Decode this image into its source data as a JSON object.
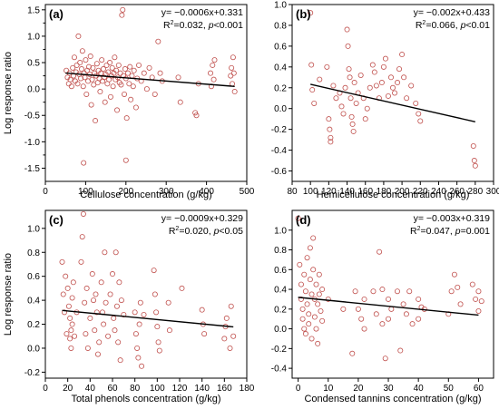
{
  "chart_data": [
    {
      "type": "scatter",
      "panel": "(a)",
      "xlabel": "Cellulose concentration (g/kg)",
      "ylabel": "Log response ratio",
      "xlim": [
        0,
        500
      ],
      "ylim": [
        -1.75,
        1.6
      ],
      "xticks": [
        0,
        100,
        200,
        300,
        400,
        500
      ],
      "yticks": [
        -1.5,
        -1.25,
        -1.0,
        -0.75,
        -0.5,
        -0.25,
        0.0,
        0.25,
        0.5,
        0.75,
        1.0,
        1.25,
        1.5
      ],
      "ytick_labels": [
        "-1.5",
        "",
        "-1.0",
        "",
        "-0.5",
        "",
        "0.0",
        "",
        "0.5",
        "",
        "1.0",
        "",
        "1.5"
      ],
      "equation": "y= −0.0006x+0.331",
      "r2_prefix": "R",
      "r2_sup": "2",
      "r2_text": "=0.032, ",
      "p_label": "p",
      "p_text": "<0.001",
      "fit": {
        "slope": -0.0006,
        "intercept": 0.331,
        "x0": 50,
        "x1": 470
      },
      "points": [
        [
          52,
          0.35
        ],
        [
          55,
          0.22
        ],
        [
          58,
          0.1
        ],
        [
          60,
          0.3
        ],
        [
          62,
          0.18
        ],
        [
          65,
          0.05
        ],
        [
          68,
          0.4
        ],
        [
          70,
          0.25
        ],
        [
          72,
          0.6
        ],
        [
          74,
          0.15
        ],
        [
          76,
          0.32
        ],
        [
          78,
          0.45
        ],
        [
          80,
          0.1
        ],
        [
          82,
          1.0
        ],
        [
          84,
          0.28
        ],
        [
          86,
          0.5
        ],
        [
          88,
          0.2
        ],
        [
          90,
          0.38
        ],
        [
          92,
          0.72
        ],
        [
          94,
          0.05
        ],
        [
          96,
          0.3
        ],
        [
          98,
          0.22
        ],
        [
          100,
          0.55
        ],
        [
          102,
          -0.1
        ],
        [
          104,
          0.35
        ],
        [
          106,
          0.15
        ],
        [
          108,
          0.42
        ],
        [
          110,
          0.28
        ],
        [
          112,
          0.62
        ],
        [
          114,
          -0.3
        ],
        [
          116,
          0.18
        ],
        [
          118,
          0.4
        ],
        [
          120,
          0.08
        ],
        [
          122,
          0.3
        ],
        [
          124,
          -0.6
        ],
        [
          126,
          0.25
        ],
        [
          128,
          0.48
        ],
        [
          130,
          0.12
        ],
        [
          132,
          0.35
        ],
        [
          134,
          0.2
        ],
        [
          136,
          -0.05
        ],
        [
          138,
          0.3
        ],
        [
          140,
          0.55
        ],
        [
          142,
          0.15
        ],
        [
          144,
          0.38
        ],
        [
          146,
          0.22
        ],
        [
          148,
          -0.25
        ],
        [
          150,
          0.28
        ],
        [
          152,
          0.45
        ],
        [
          154,
          0.1
        ],
        [
          156,
          0.32
        ],
        [
          158,
          0.18
        ],
        [
          160,
          0.5
        ],
        [
          162,
          -0.15
        ],
        [
          164,
          0.25
        ],
        [
          166,
          0.4
        ],
        [
          168,
          0.05
        ],
        [
          170,
          0.3
        ],
        [
          172,
          0.6
        ],
        [
          174,
          0.18
        ],
        [
          176,
          0.35
        ],
        [
          178,
          -0.4
        ],
        [
          180,
          0.22
        ],
        [
          182,
          0.45
        ],
        [
          184,
          0.12
        ],
        [
          186,
          0.3
        ],
        [
          188,
          0.08
        ],
        [
          190,
          1.4
        ],
        [
          192,
          1.5
        ],
        [
          194,
          0.25
        ],
        [
          196,
          -0.1
        ],
        [
          198,
          0.38
        ],
        [
          200,
          0.2
        ],
        [
          202,
          -0.55
        ],
        [
          205,
          0.3
        ],
        [
          208,
          0.1
        ],
        [
          210,
          0.42
        ],
        [
          212,
          -0.2
        ],
        [
          215,
          0.25
        ],
        [
          218,
          0.05
        ],
        [
          220,
          0.35
        ],
        [
          225,
          -0.35
        ],
        [
          228,
          0.2
        ],
        [
          232,
          0.45
        ],
        [
          238,
          0.15
        ],
        [
          245,
          0.3
        ],
        [
          252,
          0.0
        ],
        [
          258,
          0.4
        ],
        [
          265,
          0.22
        ],
        [
          272,
          -0.1
        ],
        [
          280,
          0.9
        ],
        [
          285,
          0.3
        ],
        [
          290,
          0.15
        ],
        [
          330,
          0.22
        ],
        [
          335,
          -0.25
        ],
        [
          372,
          -0.45
        ],
        [
          375,
          -0.5
        ],
        [
          380,
          0.1
        ],
        [
          410,
          0.3
        ],
        [
          412,
          0.05
        ],
        [
          415,
          0.45
        ],
        [
          418,
          0.18
        ],
        [
          420,
          0.55
        ],
        [
          460,
          0.25
        ],
        [
          462,
          0.4
        ],
        [
          464,
          0.1
        ],
        [
          466,
          0.6
        ],
        [
          468,
          0.3
        ],
        [
          470,
          -0.05
        ],
        [
          95,
          -1.4
        ],
        [
          200,
          -1.35
        ]
      ]
    },
    {
      "type": "scatter",
      "panel": "(b)",
      "xlabel": "Hemicellulose concentration (g/kg)",
      "ylabel": "",
      "xlim": [
        80,
        300
      ],
      "ylim": [
        -0.7,
        1.0
      ],
      "xticks": [
        80,
        100,
        120,
        140,
        160,
        180,
        200,
        220,
        240,
        260,
        280,
        300
      ],
      "yticks": [
        -0.6,
        -0.4,
        -0.2,
        0.0,
        0.2,
        0.4,
        0.6,
        0.8,
        1.0
      ],
      "ytick_labels": [
        "-0.6",
        "-0.4",
        "-0.2",
        "0.0",
        "0.2",
        "0.4",
        "0.6",
        "0.8",
        "1.0"
      ],
      "equation": "y= −0.002x+0.433",
      "r2_prefix": "R",
      "r2_sup": "2",
      "r2_text": "=0.066, ",
      "p_label": "p",
      "p_text": "<0.01",
      "fit": {
        "slope": -0.002,
        "intercept": 0.433,
        "x0": 100,
        "x1": 280
      },
      "points": [
        [
          100,
          0.92
        ],
        [
          101,
          0.42
        ],
        [
          102,
          0.18
        ],
        [
          104,
          0.05
        ],
        [
          110,
          0.28
        ],
        [
          118,
          0.4
        ],
        [
          120,
          -0.1
        ],
        [
          121,
          -0.2
        ],
        [
          122,
          -0.28
        ],
        [
          122,
          -0.32
        ],
        [
          125,
          0.22
        ],
        [
          128,
          0.1
        ],
        [
          132,
          0.15
        ],
        [
          134,
          0.02
        ],
        [
          136,
          -0.05
        ],
        [
          138,
          0.2
        ],
        [
          140,
          0.76
        ],
        [
          141,
          0.6
        ],
        [
          142,
          0.38
        ],
        [
          143,
          0.3
        ],
        [
          144,
          0.1
        ],
        [
          145,
          -0.08
        ],
        [
          146,
          -0.15
        ],
        [
          147,
          -0.22
        ],
        [
          148,
          0.25
        ],
        [
          150,
          0.05
        ],
        [
          152,
          0.15
        ],
        [
          155,
          0.32
        ],
        [
          158,
          0.1
        ],
        [
          160,
          -0.1
        ],
        [
          162,
          0.0
        ],
        [
          165,
          0.2
        ],
        [
          168,
          0.42
        ],
        [
          170,
          0.35
        ],
        [
          172,
          0.22
        ],
        [
          175,
          0.1
        ],
        [
          178,
          0.25
        ],
        [
          180,
          0.4
        ],
        [
          182,
          0.48
        ],
        [
          185,
          0.12
        ],
        [
          188,
          0.3
        ],
        [
          190,
          0.2
        ],
        [
          192,
          0.15
        ],
        [
          195,
          0.25
        ],
        [
          197,
          0.38
        ],
        [
          200,
          0.52
        ],
        [
          202,
          0.3
        ],
        [
          205,
          0.1
        ],
        [
          210,
          0.22
        ],
        [
          215,
          0.05
        ],
        [
          218,
          -0.05
        ],
        [
          220,
          -0.12
        ],
        [
          278,
          -0.36
        ],
        [
          279,
          -0.5
        ],
        [
          280,
          -0.55
        ]
      ]
    },
    {
      "type": "scatter",
      "panel": "(c)",
      "xlabel": "Total phenols concentration (g/kg)",
      "ylabel": "Log response ratio",
      "xlim": [
        0,
        180
      ],
      "ylim": [
        -0.25,
        1.15
      ],
      "xticks": [
        0,
        20,
        40,
        60,
        80,
        100,
        120,
        140,
        160,
        180
      ],
      "yticks": [
        -0.2,
        0.0,
        0.2,
        0.4,
        0.6,
        0.8,
        1.0
      ],
      "ytick_labels": [
        "-0.2",
        "0.0",
        "0.2",
        "0.4",
        "0.6",
        "0.8",
        "1.0"
      ],
      "equation": "y= −0.0009x+0.329",
      "r2_prefix": "R",
      "r2_sup": "2",
      "r2_text": "=0.020, ",
      "p_label": "p",
      "p_text": "<0.05",
      "fit": {
        "slope": -0.0009,
        "intercept": 0.329,
        "x0": 15,
        "x1": 168
      },
      "points": [
        [
          15,
          0.72
        ],
        [
          16,
          0.45
        ],
        [
          17,
          0.3
        ],
        [
          18,
          0.6
        ],
        [
          19,
          0.12
        ],
        [
          20,
          0.5
        ],
        [
          21,
          0.35
        ],
        [
          22,
          0.25
        ],
        [
          22,
          0.08
        ],
        [
          23,
          0.15
        ],
        [
          23,
          0.0
        ],
        [
          24,
          0.42
        ],
        [
          24,
          0.2
        ],
        [
          25,
          0.55
        ],
        [
          26,
          0.1
        ],
        [
          28,
          0.3
        ],
        [
          32,
          0.72
        ],
        [
          33,
          0.93
        ],
        [
          34,
          1.12
        ],
        [
          35,
          0.38
        ],
        [
          36,
          0.12
        ],
        [
          37,
          0.5
        ],
        [
          38,
          0.0
        ],
        [
          40,
          0.25
        ],
        [
          42,
          0.62
        ],
        [
          43,
          0.4
        ],
        [
          44,
          0.15
        ],
        [
          45,
          0.45
        ],
        [
          46,
          0.3
        ],
        [
          47,
          -0.05
        ],
        [
          48,
          0.05
        ],
        [
          50,
          0.55
        ],
        [
          51,
          0.3
        ],
        [
          52,
          0.2
        ],
        [
          53,
          0.8
        ],
        [
          54,
          0.38
        ],
        [
          56,
          0.1
        ],
        [
          58,
          0.45
        ],
        [
          60,
          0.62
        ],
        [
          61,
          0.25
        ],
        [
          62,
          0.15
        ],
        [
          63,
          0.8
        ],
        [
          64,
          0.35
        ],
        [
          65,
          0.05
        ],
        [
          66,
          0.55
        ],
        [
          67,
          -0.1
        ],
        [
          68,
          0.4
        ],
        [
          70,
          0.28
        ],
        [
          80,
          0.3
        ],
        [
          81,
          0.12
        ],
        [
          82,
          0.0
        ],
        [
          83,
          -0.08
        ],
        [
          84,
          0.2
        ],
        [
          85,
          0.38
        ],
        [
          86,
          -0.15
        ],
        [
          88,
          0.28
        ],
        [
          97,
          0.65
        ],
        [
          98,
          0.45
        ],
        [
          99,
          0.3
        ],
        [
          100,
          0.18
        ],
        [
          101,
          0.05
        ],
        [
          102,
          -0.02
        ],
        [
          110,
          0.38
        ],
        [
          111,
          0.15
        ],
        [
          122,
          0.5
        ],
        [
          140,
          0.32
        ],
        [
          141,
          0.2
        ],
        [
          142,
          0.12
        ],
        [
          160,
          0.08
        ],
        [
          161,
          0.18
        ],
        [
          162,
          0.25
        ],
        [
          165,
          0.0
        ],
        [
          166,
          0.35
        ],
        [
          168,
          0.1
        ]
      ]
    },
    {
      "type": "scatter",
      "panel": "(d)",
      "xlabel": "Condensed tannins concentration (g/kg)",
      "ylabel": "",
      "xlim": [
        -2,
        65
      ],
      "ylim": [
        -0.5,
        1.2
      ],
      "xticks": [
        0,
        10,
        20,
        30,
        40,
        50,
        60
      ],
      "yticks": [
        -0.4,
        -0.2,
        0.0,
        0.2,
        0.4,
        0.6,
        0.8,
        1.0
      ],
      "ytick_labels": [
        "-0.4",
        "-0.2",
        "0.0",
        "0.2",
        "0.4",
        "0.6",
        "0.8",
        "1.0"
      ],
      "equation": "y= −0.003x+0.319",
      "r2_prefix": "R",
      "r2_sup": "2",
      "r2_text": "=0.047, ",
      "p_label": "p",
      "p_text": "=0.001",
      "fit": {
        "slope": -0.003,
        "intercept": 0.319,
        "x0": 0,
        "x1": 60
      },
      "points": [
        [
          0,
          1.12
        ],
        [
          0.5,
          0.65
        ],
        [
          1,
          0.45
        ],
        [
          1,
          0.3
        ],
        [
          1.5,
          0.2
        ],
        [
          1.5,
          0.1
        ],
        [
          2,
          0.55
        ],
        [
          2,
          0.0
        ],
        [
          2.5,
          0.38
        ],
        [
          2.5,
          -0.05
        ],
        [
          3,
          0.72
        ],
        [
          3,
          0.25
        ],
        [
          3.5,
          0.15
        ],
        [
          3.5,
          0.05
        ],
        [
          4,
          0.82
        ],
        [
          4,
          0.5
        ],
        [
          4.5,
          0.35
        ],
        [
          4.5,
          -0.1
        ],
        [
          5,
          0.92
        ],
        [
          5,
          0.6
        ],
        [
          5.5,
          0.3
        ],
        [
          5.5,
          0.12
        ],
        [
          6,
          0.45
        ],
        [
          6,
          0.0
        ],
        [
          6.5,
          0.25
        ],
        [
          6.5,
          -0.15
        ],
        [
          7,
          0.55
        ],
        [
          7,
          0.35
        ],
        [
          7.5,
          0.18
        ],
        [
          8,
          0.4
        ],
        [
          8,
          0.08
        ],
        [
          10,
          0.3
        ],
        [
          15,
          0.2
        ],
        [
          18,
          -0.25
        ],
        [
          19,
          0.38
        ],
        [
          20,
          0.2
        ],
        [
          21,
          0.1
        ],
        [
          22,
          0.3
        ],
        [
          22,
          0.0
        ],
        [
          25,
          0.38
        ],
        [
          26,
          0.15
        ],
        [
          27,
          0.78
        ],
        [
          28,
          0.4
        ],
        [
          28,
          0.05
        ],
        [
          29,
          -0.3
        ],
        [
          30,
          0.3
        ],
        [
          30,
          0.1
        ],
        [
          31,
          0.2
        ],
        [
          33,
          0.38
        ],
        [
          34,
          -0.22
        ],
        [
          35,
          0.25
        ],
        [
          36,
          0.15
        ],
        [
          37,
          0.38
        ],
        [
          38,
          0.05
        ],
        [
          40,
          0.3
        ],
        [
          40,
          0.1
        ],
        [
          41,
          0.22
        ],
        [
          42,
          0.2
        ],
        [
          50,
          0.15
        ],
        [
          51,
          0.38
        ],
        [
          52,
          0.55
        ],
        [
          53,
          0.42
        ],
        [
          54,
          0.25
        ],
        [
          58,
          0.45
        ],
        [
          59,
          0.3
        ],
        [
          60,
          0.38
        ],
        [
          60,
          0.18
        ],
        [
          61,
          0.28
        ]
      ]
    }
  ]
}
